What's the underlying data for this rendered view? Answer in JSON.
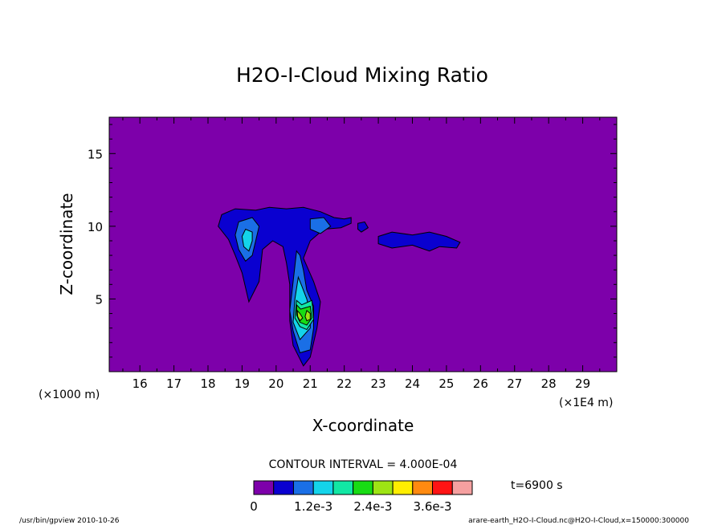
{
  "chart_data": {
    "type": "contour",
    "title": "H2O-I-Cloud Mixing Ratio",
    "xlabel": "X-coordinate",
    "ylabel": "Z-coordinate",
    "x_unit": "(×1E4 m)",
    "y_unit": "(×1000 m)",
    "xlim": [
      15.1,
      30.0
    ],
    "ylim": [
      0.0,
      17.5
    ],
    "x_ticks": [
      16,
      17,
      18,
      19,
      20,
      21,
      22,
      23,
      24,
      25,
      26,
      27,
      28,
      29
    ],
    "y_ticks": [
      5,
      10,
      15
    ],
    "background_color": "#7d00aa",
    "contour_interval": "CONTOUR INTERVAL = 4.000E-04",
    "time_label": "t=6900 s",
    "colorbar": {
      "colors": [
        "#7d00aa",
        "#0a00d0",
        "#1a6fe6",
        "#14d4ea",
        "#12e7a4",
        "#18dc14",
        "#9ee414",
        "#ffee00",
        "#ff8a10",
        "#ff1414",
        "#f5a0a0"
      ],
      "tick_labels": [
        "0",
        "1.2e-3",
        "2.4e-3",
        "3.6e-3"
      ],
      "tick_boundary_index": [
        0,
        3,
        6,
        9
      ]
    },
    "cloud_regions": [
      {
        "level": 1,
        "points": [
          [
            18.3,
            10.0
          ],
          [
            18.4,
            10.8
          ],
          [
            18.8,
            11.2
          ],
          [
            19.4,
            11.1
          ],
          [
            19.8,
            11.3
          ],
          [
            20.3,
            11.2
          ],
          [
            20.8,
            11.3
          ],
          [
            21.3,
            11.0
          ],
          [
            21.7,
            10.6
          ],
          [
            22.0,
            10.5
          ],
          [
            22.2,
            10.6
          ],
          [
            22.2,
            10.2
          ],
          [
            21.9,
            9.9
          ],
          [
            21.4,
            9.8
          ],
          [
            21.0,
            9.0
          ],
          [
            20.8,
            7.8
          ],
          [
            21.1,
            6.2
          ],
          [
            21.3,
            4.8
          ],
          [
            21.2,
            3.0
          ],
          [
            21.0,
            1.0
          ],
          [
            20.8,
            0.4
          ],
          [
            20.5,
            1.8
          ],
          [
            20.4,
            3.5
          ],
          [
            20.4,
            6.0
          ],
          [
            20.3,
            7.5
          ],
          [
            20.2,
            8.6
          ],
          [
            19.9,
            9.0
          ],
          [
            19.6,
            8.4
          ],
          [
            19.5,
            6.2
          ],
          [
            19.2,
            4.8
          ],
          [
            19.0,
            6.8
          ],
          [
            18.8,
            8.0
          ],
          [
            18.6,
            9.1
          ]
        ]
      },
      {
        "level": 1,
        "points": [
          [
            22.4,
            10.2
          ],
          [
            22.6,
            10.3
          ],
          [
            22.7,
            9.9
          ],
          [
            22.5,
            9.6
          ],
          [
            22.4,
            9.8
          ]
        ]
      },
      {
        "level": 1,
        "points": [
          [
            23.0,
            9.3
          ],
          [
            23.4,
            9.6
          ],
          [
            24.0,
            9.4
          ],
          [
            24.5,
            9.6
          ],
          [
            25.0,
            9.3
          ],
          [
            25.4,
            8.9
          ],
          [
            25.3,
            8.5
          ],
          [
            24.8,
            8.6
          ],
          [
            24.5,
            8.3
          ],
          [
            24.0,
            8.7
          ],
          [
            23.4,
            8.5
          ],
          [
            23.0,
            8.8
          ]
        ]
      },
      {
        "level": 2,
        "points": [
          [
            18.9,
            10.3
          ],
          [
            19.3,
            10.6
          ],
          [
            19.5,
            10.0
          ],
          [
            19.4,
            9.0
          ],
          [
            19.3,
            8.0
          ],
          [
            19.1,
            7.6
          ],
          [
            18.9,
            8.4
          ],
          [
            18.8,
            9.4
          ]
        ]
      },
      {
        "level": 2,
        "points": [
          [
            21.0,
            10.5
          ],
          [
            21.4,
            10.6
          ],
          [
            21.6,
            10.0
          ],
          [
            21.3,
            9.5
          ],
          [
            21.0,
            9.8
          ]
        ]
      },
      {
        "level": 2,
        "points": [
          [
            20.6,
            8.3
          ],
          [
            20.7,
            8.0
          ],
          [
            20.8,
            7.0
          ],
          [
            20.9,
            5.6
          ],
          [
            21.1,
            4.5
          ],
          [
            21.1,
            3.0
          ],
          [
            21.0,
            1.5
          ],
          [
            20.7,
            1.3
          ],
          [
            20.5,
            2.8
          ],
          [
            20.4,
            4.2
          ],
          [
            20.5,
            6.2
          ]
        ]
      },
      {
        "level": 3,
        "points": [
          [
            19.1,
            9.8
          ],
          [
            19.3,
            9.6
          ],
          [
            19.3,
            9.0
          ],
          [
            19.2,
            8.3
          ],
          [
            19.05,
            8.6
          ],
          [
            19.0,
            9.3
          ]
        ]
      },
      {
        "level": 3,
        "points": [
          [
            20.65,
            6.5
          ],
          [
            20.75,
            5.9
          ],
          [
            20.9,
            5.0
          ],
          [
            21.0,
            4.0
          ],
          [
            21.0,
            3.0
          ],
          [
            20.7,
            2.2
          ],
          [
            20.5,
            3.4
          ],
          [
            20.55,
            5.0
          ]
        ]
      },
      {
        "level": 4,
        "points": [
          [
            20.6,
            4.9
          ],
          [
            20.75,
            4.6
          ],
          [
            21.05,
            4.9
          ],
          [
            21.1,
            3.6
          ],
          [
            20.9,
            2.9
          ],
          [
            20.7,
            3.1
          ],
          [
            20.55,
            3.7
          ]
        ]
      },
      {
        "level": 5,
        "points": [
          [
            20.6,
            4.6
          ],
          [
            20.72,
            4.3
          ],
          [
            21.0,
            4.5
          ],
          [
            21.05,
            3.7
          ],
          [
            20.9,
            3.2
          ],
          [
            20.7,
            3.4
          ],
          [
            20.6,
            3.9
          ]
        ]
      },
      {
        "level": 6,
        "points": [
          [
            20.62,
            4.2
          ],
          [
            20.7,
            4.0
          ],
          [
            20.78,
            3.7
          ],
          [
            20.7,
            3.5
          ],
          [
            20.63,
            3.8
          ]
        ]
      },
      {
        "level": 6,
        "points": [
          [
            20.9,
            4.2
          ],
          [
            21.0,
            4.0
          ],
          [
            21.0,
            3.6
          ],
          [
            20.9,
            3.5
          ],
          [
            20.85,
            3.8
          ]
        ]
      }
    ]
  },
  "footer": {
    "left": "/usr/bin/gpview   2010-10-26",
    "right": "arare-earth_H2O-I-Cloud.nc@H2O-I-Cloud,x=150000:300000"
  }
}
